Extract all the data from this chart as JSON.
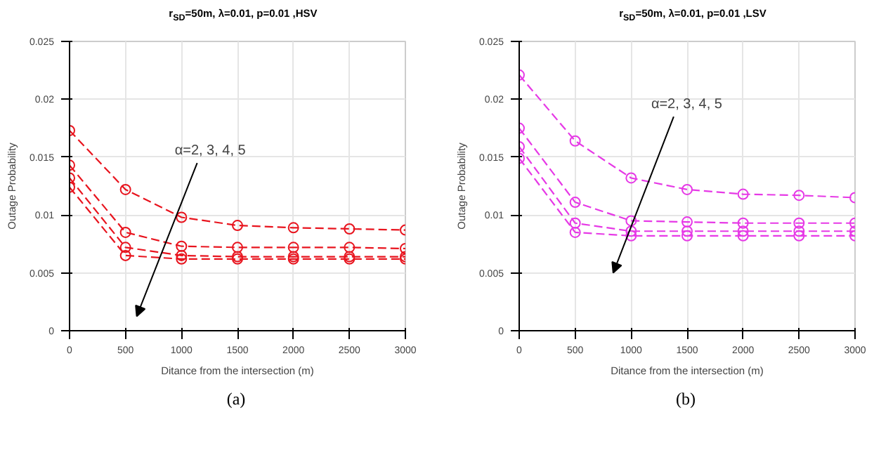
{
  "chart_data": [
    {
      "type": "line",
      "title": "r$_{SD}$=50m, λ=0.01, p=0.01 ,HSV",
      "xlabel": "Ditance from the intersection (m)",
      "ylabel": "Outage Probability",
      "x": [
        0,
        500,
        1000,
        1500,
        2000,
        2500,
        3000
      ],
      "xlim": [
        0,
        3000
      ],
      "ylim": [
        0,
        0.025
      ],
      "xticks": [
        0,
        500,
        1000,
        1500,
        2000,
        2500,
        3000
      ],
      "yticks": [
        0,
        0.005,
        0.01,
        0.015,
        0.02,
        0.025
      ],
      "grid": true,
      "marker": "circle",
      "line_style": "dashed",
      "annotations": [
        "α=2, 3, 4, 5",
        "(a)"
      ],
      "series": [
        {
          "color": "#e8141e",
          "values": [
            0.0173,
            0.0122,
            0.0098,
            0.0091,
            0.0089,
            0.0088,
            0.0087
          ]
        },
        {
          "color": "#e8141e",
          "values": [
            0.0143,
            0.0085,
            0.0073,
            0.0072,
            0.0072,
            0.0072,
            0.0071
          ]
        },
        {
          "color": "#e8141e",
          "values": [
            0.0132,
            0.0072,
            0.0065,
            0.0064,
            0.0064,
            0.0064,
            0.0064
          ]
        },
        {
          "color": "#e8141e",
          "values": [
            0.0124,
            0.0065,
            0.0062,
            0.0062,
            0.0062,
            0.0062,
            0.0062
          ]
        }
      ]
    },
    {
      "type": "line",
      "title": "r$_{SD}$=50m, λ=0.01, p=0.01 ,LSV",
      "xlabel": "Ditance from the intersection (m)",
      "ylabel": "Outage Probability",
      "x": [
        0,
        500,
        1000,
        1500,
        2000,
        2500,
        3000
      ],
      "xlim": [
        0,
        3000
      ],
      "ylim": [
        0,
        0.025
      ],
      "xticks": [
        0,
        500,
        1000,
        1500,
        2000,
        2500,
        3000
      ],
      "yticks": [
        0,
        0.005,
        0.01,
        0.015,
        0.02,
        0.025
      ],
      "grid": true,
      "marker": "circle",
      "line_style": "dashed",
      "annotations": [
        "α=2, 3, 4, 5",
        "(b)"
      ],
      "series": [
        {
          "color": "#e639e6",
          "values": [
            0.0221,
            0.0164,
            0.0132,
            0.0122,
            0.0118,
            0.0117,
            0.0115
          ]
        },
        {
          "color": "#e639e6",
          "values": [
            0.0175,
            0.0111,
            0.0095,
            0.0094,
            0.0093,
            0.0093,
            0.0093
          ]
        },
        {
          "color": "#e639e6",
          "values": [
            0.0159,
            0.0093,
            0.0086,
            0.0086,
            0.0086,
            0.0086,
            0.0086
          ]
        },
        {
          "color": "#e639e6",
          "values": [
            0.0149,
            0.0085,
            0.0082,
            0.0082,
            0.0082,
            0.0082,
            0.0082
          ]
        }
      ]
    }
  ]
}
